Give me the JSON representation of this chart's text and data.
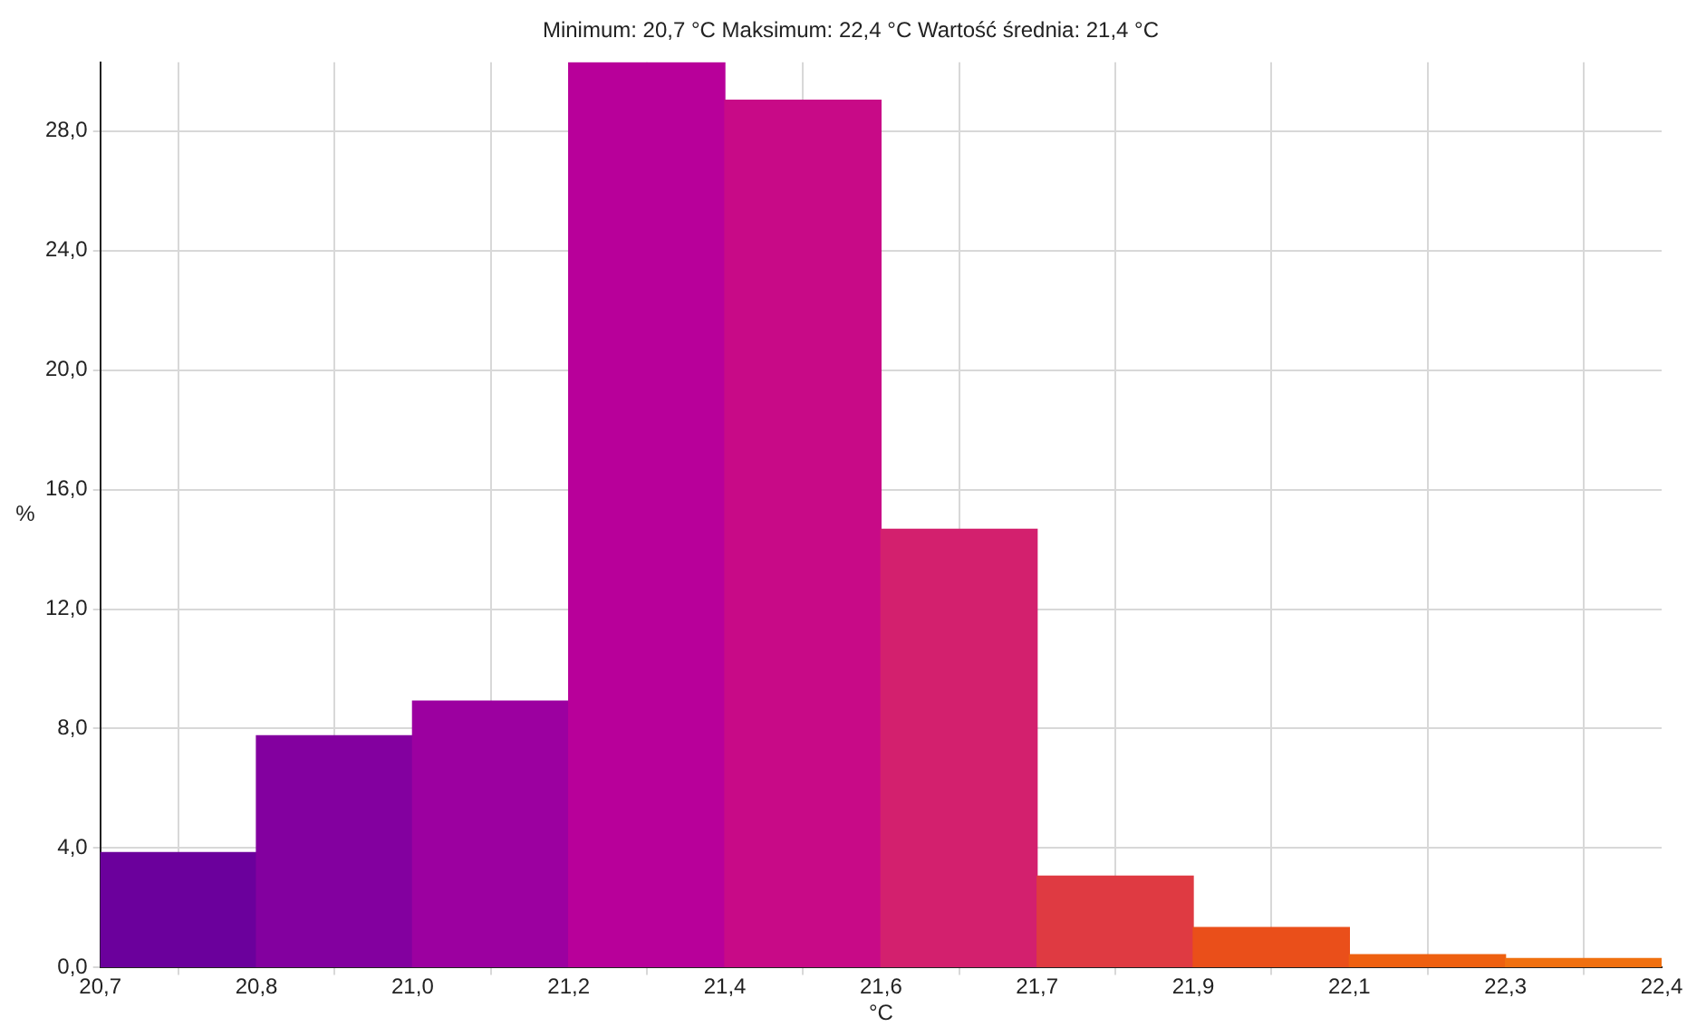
{
  "chart_data": {
    "type": "histogram",
    "title": "Minimum: 20,7 °C Maksimum: 22,4 °C Wartość średnia: 21,4 °C",
    "xlabel": "°C",
    "ylabel": "%",
    "bins": [
      20.662,
      20.84,
      21.018,
      21.196,
      21.374,
      21.552,
      21.73,
      21.908,
      22.086,
      22.264,
      22.442
    ],
    "values": [
      3.85,
      7.76,
      8.92,
      30.3,
      29.03,
      14.67,
      3.06,
      1.34,
      0.43,
      0.3
    ],
    "colors": [
      "#6b009c",
      "#83009f",
      "#9c00a0",
      "#b8009a",
      "#c80a87",
      "#d3206e",
      "#df3a42",
      "#ea4f1a",
      "#ee6010",
      "#f07010"
    ],
    "xlim": [
      20.662,
      22.442
    ],
    "xticks": [
      {
        "value": 20.662,
        "label": "20,7"
      },
      {
        "value": 20.84,
        "label": "20,8"
      },
      {
        "value": 21.018,
        "label": "21,0"
      },
      {
        "value": 21.196,
        "label": "21,2"
      },
      {
        "value": 21.374,
        "label": "21,4"
      },
      {
        "value": 21.552,
        "label": "21,6"
      },
      {
        "value": 21.73,
        "label": "21,7"
      },
      {
        "value": 21.908,
        "label": "21,9"
      },
      {
        "value": 22.086,
        "label": "22,1"
      },
      {
        "value": 22.264,
        "label": "22,3"
      },
      {
        "value": 22.442,
        "label": "22,4"
      }
    ],
    "ylim": [
      0,
      30.3
    ],
    "yticks": [
      {
        "value": 0,
        "label": "0,0"
      },
      {
        "value": 4,
        "label": "4,0"
      },
      {
        "value": 8,
        "label": "8,0"
      },
      {
        "value": 12,
        "label": "12,0"
      },
      {
        "value": 16,
        "label": "16,0"
      },
      {
        "value": 20,
        "label": "20,0"
      },
      {
        "value": 24,
        "label": "24,0"
      },
      {
        "value": 28,
        "label": "28,0"
      }
    ],
    "grid": true
  }
}
